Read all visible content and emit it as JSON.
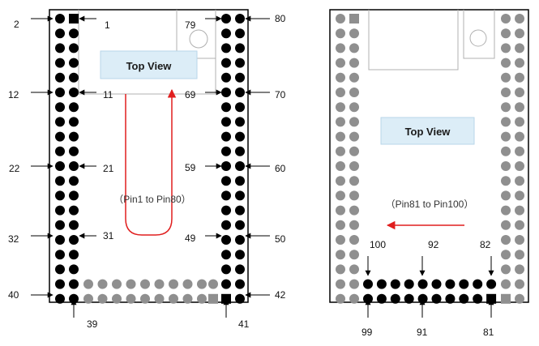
{
  "left_diagram": {
    "view_label": "Top View",
    "route_label": "（Pin1 to Pin80）",
    "pin_labels": {
      "p1": "1",
      "p2": "2",
      "p11": "11",
      "p12": "12",
      "p21": "21",
      "p22": "22",
      "p31": "31",
      "p32": "32",
      "p39": "39",
      "p40": "40",
      "p41": "41",
      "p42": "42",
      "p49": "49",
      "p50": "50",
      "p59": "59",
      "p60": "60",
      "p69": "69",
      "p70": "70",
      "p79": "79",
      "p80": "80"
    }
  },
  "right_diagram": {
    "view_label": "Top View",
    "route_label": "（Pin81 to Pin100）",
    "pin_labels": {
      "p81": "81",
      "p82": "82",
      "p91": "91",
      "p92": "92",
      "p99": "99",
      "p100": "100"
    }
  },
  "colors": {
    "active_pin": "#000000",
    "inactive_pin": "#8f8f8f",
    "route_arrow": "#e01e1e",
    "label_box_fill": "#dcedf7",
    "label_box_border": "#b9d6e9",
    "board_outline": "#000000",
    "outline_gray": "#9a9a9a"
  }
}
